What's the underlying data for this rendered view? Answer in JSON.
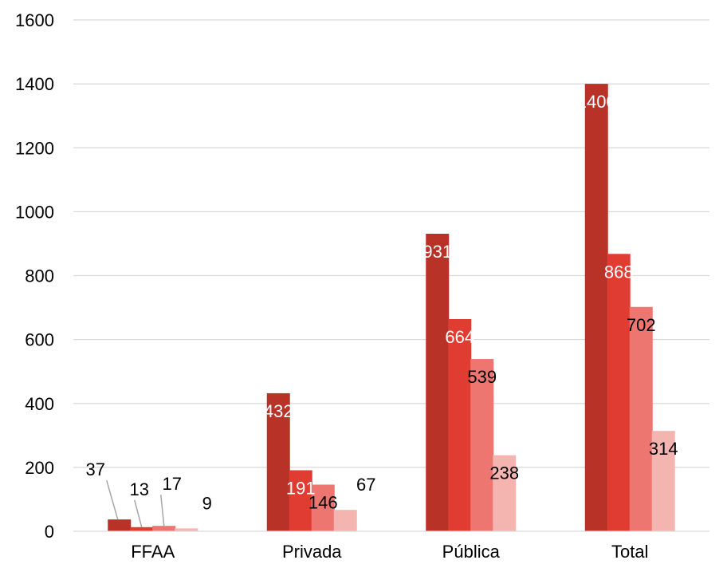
{
  "chart_data": {
    "type": "bar",
    "categories": [
      "FFAA",
      "Privada",
      "Pública",
      "Total"
    ],
    "series": [
      {
        "values": [
          37,
          432,
          931,
          1400
        ],
        "color": "#b83228",
        "label_color": "#ffffff"
      },
      {
        "values": [
          13,
          191,
          664,
          868
        ],
        "color": "#e03c31",
        "label_color": "#ffffff"
      },
      {
        "values": [
          17,
          146,
          539,
          702
        ],
        "color": "#ee7671",
        "label_color": "#000000"
      },
      {
        "values": [
          9,
          67,
          238,
          314
        ],
        "color": "#f4b5b1",
        "label_color": "#000000"
      }
    ],
    "ylim": [
      0,
      1600
    ],
    "yticks": [
      0,
      200,
      400,
      600,
      800,
      1000,
      1200,
      1400,
      1600
    ],
    "grid": true,
    "legend": "none",
    "gridline_color": "#d9d9d9",
    "leader_line_color": "#a6a6a6"
  }
}
